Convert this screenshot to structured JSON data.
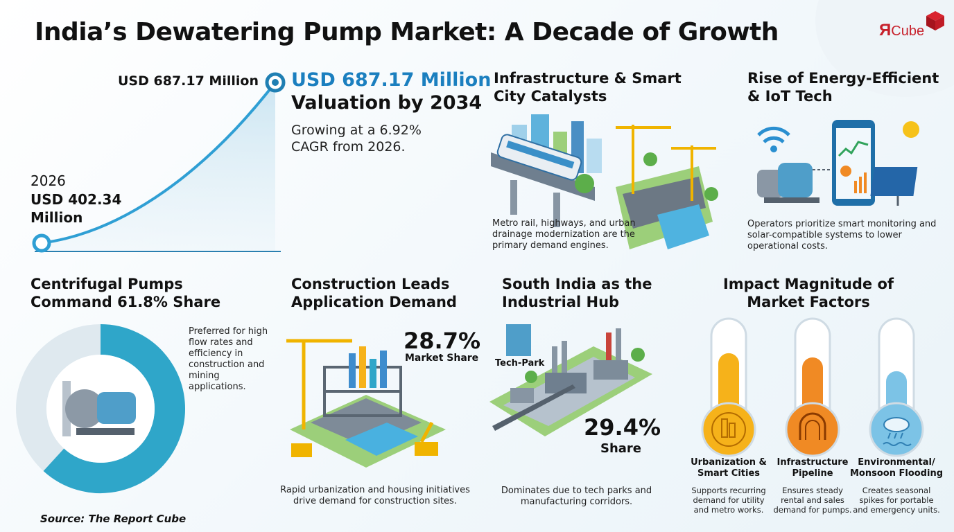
{
  "title": "India’s Dewatering Pump Market: A Decade of Growth",
  "logo": {
    "prefix": "Я",
    "suffix": "Cube"
  },
  "growth": {
    "end_label": "USD 687.17 Million",
    "start_year": "2026",
    "start_value": "USD 402.34 Million",
    "valuation_value": "USD 687.17 Million",
    "valuation_label": "Valuation by 2034",
    "note": "Growing at a 6.92% CAGR from 2026."
  },
  "infrastructure": {
    "title": "Infrastructure & Smart City Catalysts",
    "note": "Metro rail, highways, and urban drainage modernization are the primary demand engines."
  },
  "iot": {
    "title": "Rise of Energy-Efficient & IoT Tech",
    "note": "Operators prioritize smart monitoring and solar-compatible systems to lower operational costs."
  },
  "centrifugal": {
    "title": "Centrifugal Pumps Command 61.8% Share",
    "share": 0.618,
    "note": "Preferred for high flow rates and efficiency in construction and mining applications."
  },
  "construction": {
    "title": "Construction Leads Application Demand",
    "percent": "28.7%",
    "percent_label": "Market Share",
    "note": "Rapid urbanization and housing initiatives drive demand for construction sites."
  },
  "south_india": {
    "title": "South India as the Industrial Hub",
    "tech_park_label": "Tech-Park",
    "percent": "29.4%",
    "percent_label": "Share",
    "note": "Dominates due to tech parks and manufacturing corridors."
  },
  "impact": {
    "title": "Impact Magnitude of Market Factors",
    "factors": [
      {
        "label": "Urbanization & Smart Cities",
        "note": "Supports recurring demand for utility and metro works.",
        "level": 0.72,
        "color": "#f6b21a"
      },
      {
        "label": "Infrastructure Pipeline",
        "note": "Ensures steady rental and sales demand for pumps.",
        "level": 0.68,
        "color": "#f08a24"
      },
      {
        "label": "Environmental/ Monsoon Flooding",
        "note": "Creates seasonal spikes for portable and emergency units.",
        "level": 0.55,
        "color": "#7cc3e6"
      }
    ]
  },
  "source": "Source: The Report Cube"
}
